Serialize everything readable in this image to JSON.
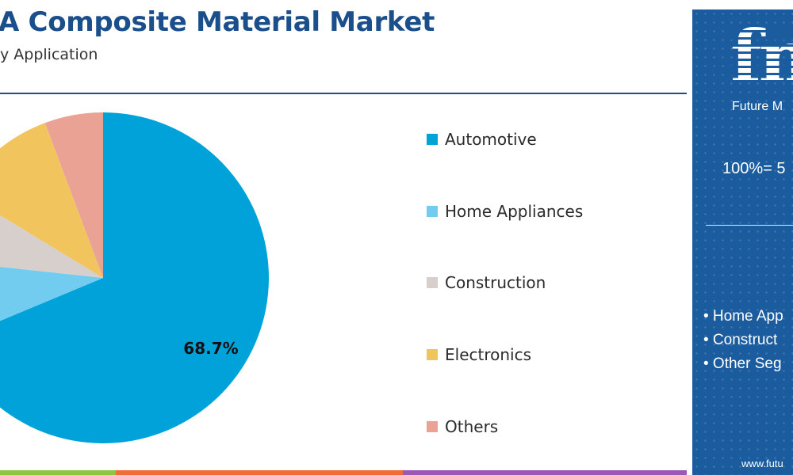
{
  "header": {
    "title": "A Composite Material Market",
    "subtitle": "y Application"
  },
  "chart_data": {
    "type": "pie",
    "title": "A Composite Material Market",
    "subtitle": "y Application",
    "slices": [
      {
        "label": "Automotive",
        "value": 68.7,
        "color": "#00a3d9"
      },
      {
        "label": "Home Appliances",
        "value": 8.0,
        "color": "#72ccf0"
      },
      {
        "label": "Construction",
        "value": 7.0,
        "color": "#d6cfcc"
      },
      {
        "label": "Electronics",
        "value": 10.6,
        "color": "#f2c45e"
      },
      {
        "label": "Others",
        "value": 5.7,
        "color": "#eaa294"
      }
    ],
    "data_labels": [
      {
        "slice": "Automotive",
        "text": "68.7%"
      }
    ],
    "legend_position": "right"
  },
  "sidebar": {
    "logo_text": "fm",
    "brand_name": "Future M",
    "total_label": "100%= 5",
    "items": [
      "• Home App",
      "• Construct",
      "• Other Seg"
    ],
    "url": "www.futu"
  },
  "colors": {
    "brand_blue": "#1a5c9e",
    "title_blue": "#1b4f8c",
    "bottom_bar": [
      "#8cc63f",
      "#f26b3a",
      "#9b59b6"
    ]
  }
}
